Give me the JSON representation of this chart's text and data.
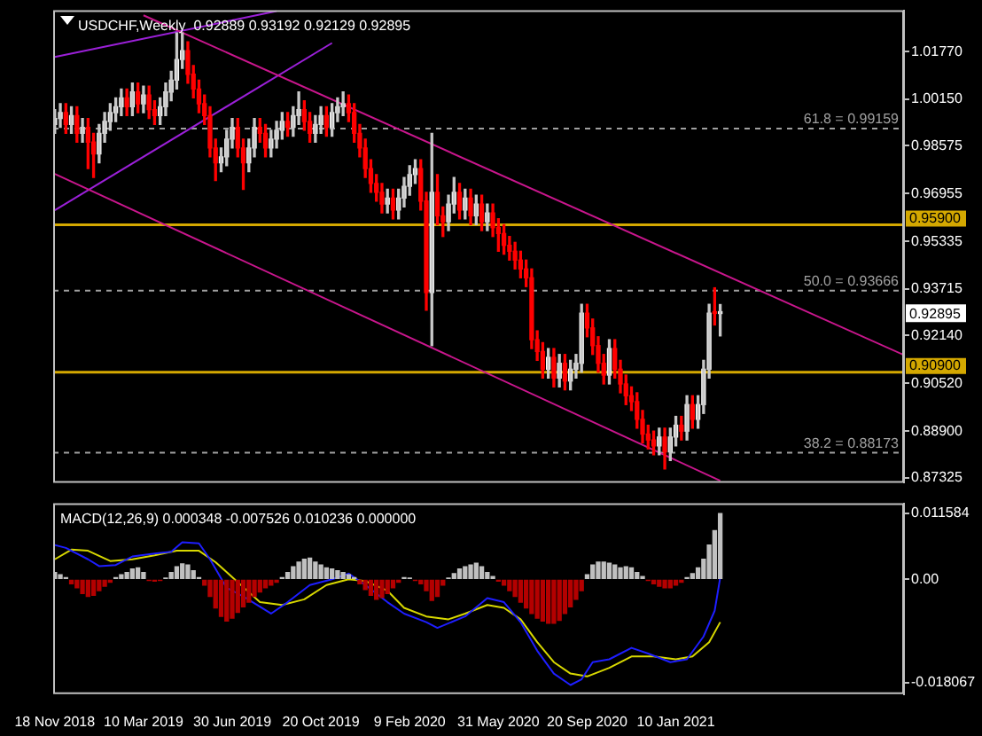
{
  "chart_data": [
    {
      "type": "candlestick",
      "title": "USDCHF,Weekly  0.92889 0.93192 0.92129 0.92895",
      "x": [
        "2018-11-18",
        "2018-11-25",
        "2018-12-02",
        "2018-12-09",
        "2018-12-16",
        "2018-12-23",
        "2018-12-30",
        "2019-01-06",
        "2019-01-13",
        "2019-01-20",
        "2019-01-27",
        "2019-02-03",
        "2019-02-10",
        "2019-02-17",
        "2019-02-24",
        "2019-03-03",
        "2019-03-10",
        "2019-03-17",
        "2019-03-24",
        "2019-03-31",
        "2019-04-07",
        "2019-04-14",
        "2019-04-21",
        "2019-04-28",
        "2019-05-05",
        "2019-05-12",
        "2019-05-19",
        "2019-05-26",
        "2019-06-02",
        "2019-06-09",
        "2019-06-16",
        "2019-06-23",
        "2019-06-30",
        "2019-07-07",
        "2019-07-14",
        "2019-07-21",
        "2019-07-28",
        "2019-08-04",
        "2019-08-11",
        "2019-08-18",
        "2019-08-25",
        "2019-09-01",
        "2019-09-08",
        "2019-09-15",
        "2019-09-22",
        "2019-09-29",
        "2019-10-06",
        "2019-10-13",
        "2019-10-20",
        "2019-10-27",
        "2019-11-03",
        "2019-11-10",
        "2019-11-17",
        "2019-11-24",
        "2019-12-01",
        "2019-12-08",
        "2019-12-15",
        "2019-12-22",
        "2019-12-29",
        "2020-01-05",
        "2020-01-12",
        "2020-01-19",
        "2020-01-26",
        "2020-02-02",
        "2020-02-09",
        "2020-02-16",
        "2020-02-23",
        "2020-03-01",
        "2020-03-08",
        "2020-03-15",
        "2020-03-22",
        "2020-03-29",
        "2020-04-05",
        "2020-04-12",
        "2020-04-19",
        "2020-04-26",
        "2020-05-03",
        "2020-05-10",
        "2020-05-17",
        "2020-05-24",
        "2020-05-31",
        "2020-06-07",
        "2020-06-14",
        "2020-06-21",
        "2020-06-28",
        "2020-07-05",
        "2020-07-12",
        "2020-07-19",
        "2020-07-26",
        "2020-08-02",
        "2020-08-09",
        "2020-08-16",
        "2020-08-23",
        "2020-08-30",
        "2020-09-06",
        "2020-09-13",
        "2020-09-20",
        "2020-09-27",
        "2020-10-04",
        "2020-10-11",
        "2020-10-18",
        "2020-10-25",
        "2020-11-01",
        "2020-11-08",
        "2020-11-15",
        "2020-11-22",
        "2020-11-29",
        "2020-12-06",
        "2020-12-13",
        "2020-12-20",
        "2020-12-27",
        "2021-01-03",
        "2021-01-10",
        "2021-01-17",
        "2021-01-24",
        "2021-01-31",
        "2021-02-07",
        "2021-02-14",
        "2021-02-21",
        "2021-02-28",
        "2021-03-07"
      ],
      "ohlc": [
        [
          0.993,
          0.998,
          0.99,
          0.995
        ],
        [
          0.995,
          1.0,
          0.992,
          0.997
        ],
        [
          0.997,
          1.0,
          0.99,
          0.993
        ],
        [
          0.993,
          0.999,
          0.99,
          0.996
        ],
        [
          0.996,
          0.999,
          0.987,
          0.99
        ],
        [
          0.99,
          0.995,
          0.987,
          0.992
        ],
        [
          0.992,
          0.995,
          0.978,
          0.987
        ],
        [
          0.987,
          0.99,
          0.975,
          0.983
        ],
        [
          0.983,
          0.993,
          0.98,
          0.99
        ],
        [
          0.99,
          0.997,
          0.987,
          0.994
        ],
        [
          0.994,
          1.0,
          0.991,
          0.997
        ],
        [
          0.997,
          1.002,
          0.994,
          0.999
        ],
        [
          0.999,
          1.005,
          0.996,
          1.002
        ],
        [
          1.002,
          1.005,
          0.996,
          0.999
        ],
        [
          0.999,
          1.007,
          0.996,
          1.004
        ],
        [
          1.004,
          1.007,
          0.997,
          1.0
        ],
        [
          1.0,
          1.006,
          0.997,
          1.003
        ],
        [
          1.003,
          1.006,
          0.995,
          0.998
        ],
        [
          0.998,
          1.001,
          0.993,
          0.996
        ],
        [
          0.996,
          1.002,
          0.993,
          0.999
        ],
        [
          0.999,
          1.007,
          0.996,
          1.004
        ],
        [
          1.004,
          1.011,
          1.001,
          1.008
        ],
        [
          1.008,
          1.024,
          1.005,
          1.015
        ],
        [
          1.015,
          1.024,
          1.012,
          1.018
        ],
        [
          1.018,
          1.021,
          1.007,
          1.01
        ],
        [
          1.01,
          1.013,
          1.002,
          1.005
        ],
        [
          1.005,
          1.008,
          0.997,
          1.0
        ],
        [
          1.0,
          1.003,
          0.993,
          0.996
        ],
        [
          0.996,
          0.999,
          0.982,
          0.985
        ],
        [
          0.985,
          0.988,
          0.974,
          0.98
        ],
        [
          0.98,
          0.985,
          0.977,
          0.982
        ],
        [
          0.982,
          0.991,
          0.979,
          0.988
        ],
        [
          0.988,
          0.995,
          0.985,
          0.992
        ],
        [
          0.992,
          0.995,
          0.982,
          0.985
        ],
        [
          0.985,
          0.988,
          0.971,
          0.98
        ],
        [
          0.98,
          0.988,
          0.977,
          0.985
        ],
        [
          0.985,
          0.995,
          0.982,
          0.992
        ],
        [
          0.992,
          0.995,
          0.987,
          0.99
        ],
        [
          0.99,
          0.993,
          0.982,
          0.985
        ],
        [
          0.985,
          0.991,
          0.982,
          0.988
        ],
        [
          0.988,
          0.994,
          0.985,
          0.991
        ],
        [
          0.991,
          0.997,
          0.988,
          0.994
        ],
        [
          0.994,
          0.997,
          0.989,
          0.992
        ],
        [
          0.992,
          0.999,
          0.989,
          0.996
        ],
        [
          0.996,
          1.004,
          0.993,
          0.998
        ],
        [
          0.998,
          1.001,
          0.991,
          0.994
        ],
        [
          0.994,
          0.997,
          0.987,
          0.99
        ],
        [
          0.99,
          0.996,
          0.987,
          0.993
        ],
        [
          0.993,
          0.999,
          0.99,
          0.996
        ],
        [
          0.996,
          0.999,
          0.989,
          0.992
        ],
        [
          0.992,
          1.0,
          0.989,
          0.997
        ],
        [
          0.997,
          1.002,
          0.994,
          0.999
        ],
        [
          0.999,
          1.004,
          0.996,
          1.0
        ],
        [
          1.0,
          1.003,
          0.994,
          0.997
        ],
        [
          0.997,
          1.0,
          0.987,
          0.99
        ],
        [
          0.99,
          0.993,
          0.982,
          0.985
        ],
        [
          0.985,
          0.988,
          0.975,
          0.978
        ],
        [
          0.978,
          0.981,
          0.97,
          0.973
        ],
        [
          0.973,
          0.976,
          0.967,
          0.97
        ],
        [
          0.97,
          0.973,
          0.963,
          0.966
        ],
        [
          0.966,
          0.971,
          0.963,
          0.968
        ],
        [
          0.968,
          0.971,
          0.961,
          0.964
        ],
        [
          0.964,
          0.971,
          0.961,
          0.968
        ],
        [
          0.968,
          0.975,
          0.965,
          0.972
        ],
        [
          0.972,
          0.979,
          0.969,
          0.976
        ],
        [
          0.976,
          0.981,
          0.973,
          0.978
        ],
        [
          0.978,
          0.981,
          0.964,
          0.967
        ],
        [
          0.967,
          0.97,
          0.93,
          0.936
        ],
        [
          0.936,
          0.99,
          0.918,
          0.97
        ],
        [
          0.97,
          0.976,
          0.959,
          0.962
        ],
        [
          0.962,
          0.965,
          0.955,
          0.96
        ],
        [
          0.96,
          0.969,
          0.957,
          0.966
        ],
        [
          0.966,
          0.975,
          0.963,
          0.97
        ],
        [
          0.97,
          0.973,
          0.961,
          0.964
        ],
        [
          0.964,
          0.971,
          0.961,
          0.968
        ],
        [
          0.968,
          0.971,
          0.959,
          0.962
        ],
        [
          0.962,
          0.969,
          0.959,
          0.966
        ],
        [
          0.966,
          0.969,
          0.957,
          0.96
        ],
        [
          0.96,
          0.966,
          0.957,
          0.963
        ],
        [
          0.963,
          0.966,
          0.955,
          0.958
        ],
        [
          0.958,
          0.961,
          0.95,
          0.956
        ],
        [
          0.956,
          0.959,
          0.949,
          0.952
        ],
        [
          0.952,
          0.955,
          0.947,
          0.95
        ],
        [
          0.95,
          0.953,
          0.944,
          0.947
        ],
        [
          0.947,
          0.95,
          0.941,
          0.944
        ],
        [
          0.944,
          0.947,
          0.938,
          0.941
        ],
        [
          0.941,
          0.944,
          0.917,
          0.92
        ],
        [
          0.92,
          0.923,
          0.913,
          0.916
        ],
        [
          0.916,
          0.919,
          0.907,
          0.91
        ],
        [
          0.91,
          0.917,
          0.907,
          0.914
        ],
        [
          0.914,
          0.917,
          0.904,
          0.907
        ],
        [
          0.907,
          0.915,
          0.904,
          0.912
        ],
        [
          0.912,
          0.915,
          0.903,
          0.906
        ],
        [
          0.906,
          0.913,
          0.903,
          0.91
        ],
        [
          0.91,
          0.915,
          0.907,
          0.912
        ],
        [
          0.912,
          0.932,
          0.909,
          0.929
        ],
        [
          0.929,
          0.932,
          0.921,
          0.924
        ],
        [
          0.924,
          0.927,
          0.915,
          0.918
        ],
        [
          0.918,
          0.921,
          0.909,
          0.912
        ],
        [
          0.912,
          0.915,
          0.905,
          0.908
        ],
        [
          0.908,
          0.92,
          0.905,
          0.917
        ],
        [
          0.917,
          0.92,
          0.907,
          0.91
        ],
        [
          0.91,
          0.913,
          0.902,
          0.905
        ],
        [
          0.905,
          0.908,
          0.898,
          0.901
        ],
        [
          0.901,
          0.904,
          0.896,
          0.899
        ],
        [
          0.899,
          0.902,
          0.89,
          0.893
        ],
        [
          0.893,
          0.896,
          0.885,
          0.888
        ],
        [
          0.888,
          0.891,
          0.883,
          0.886
        ],
        [
          0.886,
          0.889,
          0.881,
          0.884
        ],
        [
          0.884,
          0.89,
          0.881,
          0.887
        ],
        [
          0.887,
          0.89,
          0.8762,
          0.882
        ],
        [
          0.882,
          0.89,
          0.879,
          0.887
        ],
        [
          0.887,
          0.894,
          0.884,
          0.891
        ],
        [
          0.891,
          0.894,
          0.886,
          0.889
        ],
        [
          0.889,
          0.901,
          0.886,
          0.898
        ],
        [
          0.898,
          0.901,
          0.89,
          0.893
        ],
        [
          0.893,
          0.901,
          0.89,
          0.898
        ],
        [
          0.898,
          0.913,
          0.895,
          0.91
        ],
        [
          0.91,
          0.932,
          0.907,
          0.929
        ],
        [
          0.929,
          0.9376,
          0.925,
          0.9289
        ],
        [
          0.92889,
          0.93192,
          0.92129,
          0.92895
        ]
      ],
      "series": [
        {
          "type": "line",
          "color": "#c8168c",
          "x": [
            "2019-03-10",
            "2021-10-25"
          ],
          "values": [
            1.03,
            0.9148
          ]
        },
        {
          "type": "line",
          "color": "#c8168c",
          "x": [
            "2018-11-18",
            "2021-03-07"
          ],
          "values": [
            0.9762,
            0.8722
          ]
        },
        {
          "type": "line",
          "color": "#9b20d8",
          "x": [
            "2018-11-18",
            "2019-08-25"
          ],
          "values": [
            1.0159,
            1.0314
          ]
        },
        {
          "type": "line",
          "color": "#9b20d8",
          "x": [
            "2018-11-18",
            "2019-11-03"
          ],
          "values": [
            0.9639,
            1.0206
          ]
        }
      ],
      "xlim": [
        "2018-11-16",
        "2021-10-25"
      ],
      "ylim": [
        0.8715,
        1.0317
      ],
      "yticks": [
        {
          "value": 1.0177,
          "label": "1.01770"
        },
        {
          "value": 1.0015,
          "label": "1.00150"
        },
        0.98575,
        0.96955,
        0.95335,
        0.93715,
        {
          "value": 0.9214,
          "label": "0.92140"
        },
        {
          "value": 0.9052,
          "label": "0.90520"
        },
        {
          "value": 0.889,
          "label": "0.88900"
        },
        0.87325
      ],
      "ref_lines": [
        {
          "axis": "y",
          "value": 0.959,
          "label": "0.95900",
          "color": "#d4a800",
          "line_style": "solid"
        },
        {
          "axis": "y",
          "value": 0.909,
          "label": "0.90900",
          "color": "#d4a800",
          "line_style": "solid"
        },
        {
          "axis": "y",
          "value": 0.99159,
          "label": "61.8 = 0.99159",
          "color": "#a0a0a0",
          "line_style": "dashed"
        },
        {
          "axis": "y",
          "value": 0.93666,
          "label": "50.0 = 0.93666",
          "color": "#a0a0a0",
          "line_style": "dashed"
        },
        {
          "axis": "y",
          "value": 0.88173,
          "label": "38.2 = 0.88173",
          "color": "#a0a0a0",
          "line_style": "dashed"
        }
      ],
      "annotations": [
        "0.92895"
      ],
      "tick_labels": "y"
    },
    {
      "type": "bar",
      "title": "MACD(12,26,9) 0.000348 -0.007526 0.010236 0.000000",
      "x": [
        "2018-11-18",
        "2018-11-25",
        "2018-12-02",
        "2018-12-09",
        "2018-12-16",
        "2018-12-23",
        "2018-12-30",
        "2019-01-06",
        "2019-01-13",
        "2019-01-20",
        "2019-01-27",
        "2019-02-03",
        "2019-02-10",
        "2019-02-17",
        "2019-02-24",
        "2019-03-03",
        "2019-03-10",
        "2019-03-17",
        "2019-03-24",
        "2019-03-31",
        "2019-04-07",
        "2019-04-14",
        "2019-04-21",
        "2019-04-28",
        "2019-05-05",
        "2019-05-12",
        "2019-05-19",
        "2019-05-26",
        "2019-06-02",
        "2019-06-09",
        "2019-06-16",
        "2019-06-23",
        "2019-06-30",
        "2019-07-07",
        "2019-07-14",
        "2019-07-21",
        "2019-07-28",
        "2019-08-04",
        "2019-08-11",
        "2019-08-18",
        "2019-08-25",
        "2019-09-01",
        "2019-09-08",
        "2019-09-15",
        "2019-09-22",
        "2019-09-29",
        "2019-10-06",
        "2019-10-13",
        "2019-10-20",
        "2019-10-27",
        "2019-11-03",
        "2019-11-10",
        "2019-11-17",
        "2019-11-24",
        "2019-12-01",
        "2019-12-08",
        "2019-12-15",
        "2019-12-22",
        "2019-12-29",
        "2020-01-05",
        "2020-01-12",
        "2020-01-19",
        "2020-01-26",
        "2020-02-02",
        "2020-02-09",
        "2020-02-16",
        "2020-02-23",
        "2020-03-01",
        "2020-03-08",
        "2020-03-15",
        "2020-03-22",
        "2020-03-29",
        "2020-04-05",
        "2020-04-12",
        "2020-04-19",
        "2020-04-26",
        "2020-05-03",
        "2020-05-10",
        "2020-05-17",
        "2020-05-24",
        "2020-05-31",
        "2020-06-07",
        "2020-06-14",
        "2020-06-21",
        "2020-06-28",
        "2020-07-05",
        "2020-07-12",
        "2020-07-19",
        "2020-07-26",
        "2020-08-02",
        "2020-08-09",
        "2020-08-16",
        "2020-08-23",
        "2020-08-30",
        "2020-09-06",
        "2020-09-13",
        "2020-09-20",
        "2020-09-27",
        "2020-10-04",
        "2020-10-11",
        "2020-10-18",
        "2020-10-25",
        "2020-11-01",
        "2020-11-08",
        "2020-11-15",
        "2020-11-22",
        "2020-11-29",
        "2020-12-06",
        "2020-12-13",
        "2020-12-20",
        "2020-12-27",
        "2021-01-03",
        "2021-01-10",
        "2021-01-17",
        "2021-01-24",
        "2021-01-31",
        "2021-02-07",
        "2021-02-14",
        "2021-02-21",
        "2021-02-28",
        "2021-03-07"
      ],
      "series": [
        {
          "color": "#c0c0c0",
          "values": [
            0.0012,
            0.0008,
            0.0003,
            null,
            null,
            null,
            null,
            null,
            null,
            null,
            null,
            0.0003,
            0.0008,
            0.0012,
            0.0018,
            0.002,
            0.0012,
            null,
            null,
            null,
            0.0002,
            0.0012,
            0.0022,
            0.0027,
            0.0025,
            0.0015,
            0.0003,
            null,
            null,
            null,
            null,
            null,
            null,
            null,
            null,
            null,
            null,
            null,
            null,
            null,
            null,
            0.0003,
            0.0012,
            0.0022,
            0.003,
            0.0035,
            0.0037,
            0.003,
            0.0025,
            0.002,
            0.0018,
            0.0015,
            0.0012,
            0.0008,
            0.0003,
            null,
            null,
            null,
            null,
            null,
            null,
            null,
            null,
            0.0003,
            0.0002,
            null,
            null,
            null,
            null,
            null,
            null,
            0.0002,
            0.001,
            0.0018,
            0.0022,
            0.0025,
            0.0028,
            0.0022,
            0.0012,
            0.0005,
            null,
            null,
            null,
            null,
            null,
            null,
            null,
            null,
            null,
            null,
            null,
            null,
            null,
            null,
            null,
            null,
            0.0008,
            0.0025,
            0.003,
            0.003,
            0.0028,
            0.0025,
            0.002,
            0.0022,
            0.002,
            0.0012,
            0.0005,
            null,
            null,
            null,
            null,
            null,
            null,
            null,
            0.0003,
            0.001,
            0.002,
            0.0035,
            0.006,
            0.0085,
            0.0115
          ]
        },
        {
          "color": "#b40000",
          "values": [
            null,
            null,
            null,
            -0.0008,
            -0.0015,
            -0.0025,
            -0.003,
            -0.0028,
            -0.002,
            -0.0012,
            -0.0005,
            null,
            null,
            null,
            null,
            null,
            null,
            -0.0002,
            -0.0003,
            -0.0002,
            null,
            null,
            null,
            null,
            null,
            null,
            null,
            -0.001,
            -0.003,
            -0.005,
            -0.0065,
            -0.0073,
            -0.0068,
            -0.0058,
            -0.0048,
            -0.004,
            -0.003,
            -0.0022,
            -0.0015,
            -0.001,
            -0.0005,
            null,
            null,
            null,
            null,
            null,
            null,
            null,
            null,
            null,
            null,
            null,
            null,
            null,
            null,
            -0.0008,
            -0.0018,
            -0.0028,
            -0.0035,
            -0.0032,
            -0.0025,
            -0.0015,
            -0.0005,
            null,
            null,
            -0.0002,
            -0.0008,
            -0.002,
            -0.0037,
            -0.003,
            -0.001,
            null,
            null,
            null,
            null,
            null,
            null,
            null,
            null,
            null,
            -0.0003,
            -0.001,
            -0.002,
            -0.003,
            -0.004,
            -0.005,
            -0.006,
            -0.0068,
            -0.0073,
            -0.0077,
            -0.0077,
            -0.0072,
            -0.006,
            -0.0048,
            -0.0035,
            -0.002,
            null,
            null,
            null,
            null,
            null,
            null,
            null,
            null,
            null,
            null,
            null,
            -0.0002,
            -0.0008,
            -0.0012,
            -0.0015,
            -0.0015,
            -0.001,
            -0.0005,
            null,
            null,
            null,
            null,
            null,
            null,
            null
          ]
        },
        {
          "type": "line",
          "color": "#1e1eff",
          "x": [
            "2018-11-18",
            "2018-12-02",
            "2018-12-30",
            "2019-01-13",
            "2019-02-03",
            "2019-02-24",
            "2019-03-24",
            "2019-04-14",
            "2019-04-28",
            "2019-05-19",
            "2019-06-02",
            "2019-06-23",
            "2019-07-14",
            "2019-08-18",
            "2019-09-08",
            "2019-10-06",
            "2019-11-03",
            "2019-11-24",
            "2019-12-15",
            "2020-01-12",
            "2020-02-02",
            "2020-03-01",
            "2020-03-15",
            "2020-04-19",
            "2020-05-17",
            "2020-06-07",
            "2020-06-28",
            "2020-07-19",
            "2020-08-09",
            "2020-08-30",
            "2020-09-13",
            "2020-09-27",
            "2020-10-18",
            "2020-11-15",
            "2020-12-06",
            "2021-01-03",
            "2021-01-24",
            "2021-02-14",
            "2021-02-28",
            "2021-03-07"
          ],
          "values": [
            0.006,
            0.0055,
            0.0035,
            0.0023,
            0.0025,
            0.004,
            0.0045,
            0.0048,
            0.0065,
            0.0063,
            0.0035,
            -0.0015,
            -0.003,
            -0.006,
            -0.004,
            -0.001,
            0,
            0.001,
            -0.001,
            -0.004,
            -0.006,
            -0.0075,
            -0.0085,
            -0.0065,
            -0.0033,
            -0.004,
            -0.0075,
            -0.0125,
            -0.0165,
            -0.0185,
            -0.0175,
            -0.0145,
            -0.014,
            -0.012,
            -0.013,
            -0.0145,
            -0.014,
            -0.01,
            -0.0055,
            0.0003
          ]
        },
        {
          "type": "line",
          "color": "#d8d800",
          "x": [
            "2018-11-18",
            "2018-12-09",
            "2018-12-30",
            "2019-01-27",
            "2019-02-24",
            "2019-03-24",
            "2019-04-21",
            "2019-05-19",
            "2019-06-09",
            "2019-07-07",
            "2019-08-04",
            "2019-09-01",
            "2019-09-29",
            "2019-10-27",
            "2019-11-24",
            "2019-12-15",
            "2020-01-12",
            "2020-02-02",
            "2020-03-01",
            "2020-03-29",
            "2020-04-19",
            "2020-05-17",
            "2020-06-07",
            "2020-06-28",
            "2020-07-19",
            "2020-08-09",
            "2020-08-30",
            "2020-09-20",
            "2020-10-18",
            "2020-11-15",
            "2020-12-13",
            "2021-01-10",
            "2021-01-31",
            "2021-02-21",
            "2021-03-07"
          ],
          "values": [
            0.0035,
            0.0052,
            0.005,
            0.0032,
            0.0035,
            0.0042,
            0.005,
            0.005,
            0.003,
            -0.0005,
            -0.004,
            -0.0045,
            -0.0035,
            -0.001,
            0,
            -0.0003,
            -0.002,
            -0.005,
            -0.0065,
            -0.007,
            -0.006,
            -0.0045,
            -0.005,
            -0.007,
            -0.011,
            -0.0145,
            -0.0165,
            -0.017,
            -0.0155,
            -0.0135,
            -0.0135,
            -0.014,
            -0.0135,
            -0.011,
            -0.0075
          ]
        }
      ],
      "xlim": [
        "2018-11-16",
        "2021-10-25"
      ],
      "xticks": [
        {
          "value": "2018-11-18",
          "label": "18 Nov 2018"
        },
        {
          "value": "2019-03-10",
          "label": "10 Mar 2019"
        },
        {
          "value": "2019-06-30",
          "label": "30 Jun 2019"
        },
        {
          "value": "2019-10-20",
          "label": "20 Oct 2019"
        },
        {
          "value": "2020-02-09",
          "label": "9 Feb 2020"
        },
        {
          "value": "2020-05-31",
          "label": "31 May 2020"
        },
        {
          "value": "2020-09-20",
          "label": "20 Sep 2020"
        },
        {
          "value": "2021-01-10",
          "label": "10 Jan 2021"
        }
      ],
      "ylim": [
        -0.0201,
        0.0133
      ],
      "yticks": [
        0.011584,
        {
          "value": 0,
          "label": "0.00"
        },
        -0.018067
      ]
    }
  ]
}
